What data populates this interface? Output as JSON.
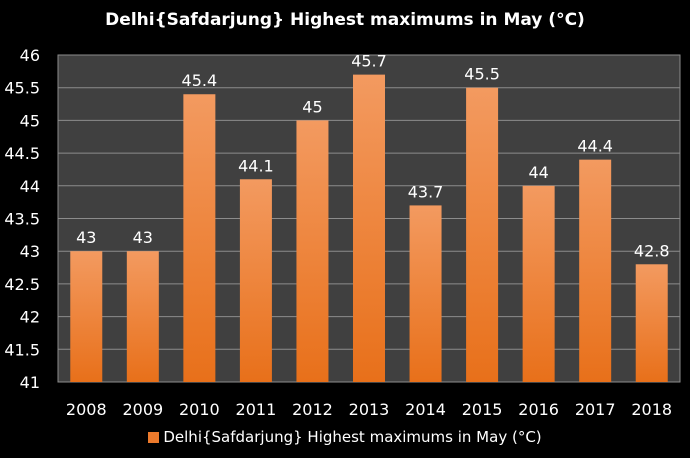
{
  "chart_data": {
    "type": "bar",
    "title": "Delhi{Safdarjung} Highest maximums in May (°C)",
    "categories": [
      "2008",
      "2009",
      "2010",
      "2011",
      "2012",
      "2013",
      "2014",
      "2015",
      "2016",
      "2017",
      "2018"
    ],
    "series": [
      {
        "name": "Delhi{Safdarjung} Highest maximums in May (°C)",
        "values": [
          43,
          43,
          45.4,
          44.1,
          45,
          45.7,
          43.7,
          45.5,
          44,
          44.4,
          42.8
        ]
      }
    ],
    "yticks": [
      "41",
      "41.5",
      "42",
      "42.5",
      "43",
      "43.5",
      "44",
      "44.5",
      "45",
      "45.5",
      "46"
    ],
    "ylim": [
      41,
      46
    ],
    "grid": true,
    "legend": "bottom",
    "colors": {
      "bar_top": "#f39a60",
      "bar_bottom": "#e8701a",
      "plot_bg": "#404040",
      "grid": "#8c8c8c",
      "background": "#000000"
    }
  }
}
